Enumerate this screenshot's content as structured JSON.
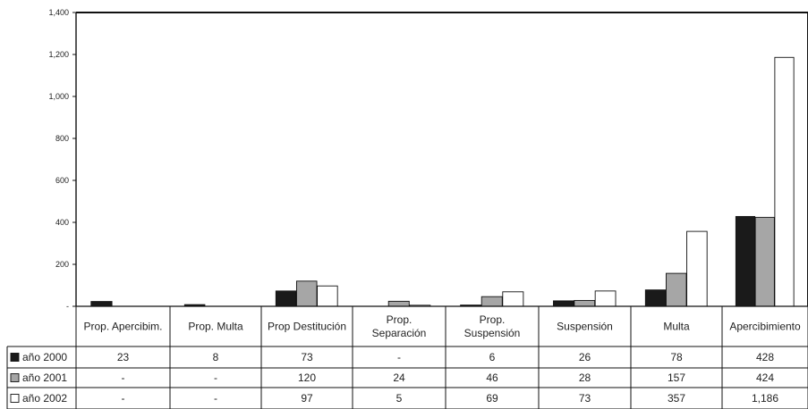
{
  "chart_data": {
    "type": "bar",
    "categories": [
      "Prop. Apercibim.",
      "Prop. Multa",
      "Prop Destitución",
      "Prop. Separación",
      "Prop. Suspensión",
      "Suspensión",
      "Multa",
      "Apercibimiento"
    ],
    "category_lines": [
      [
        "Prop. Apercibim."
      ],
      [
        "Prop. Multa"
      ],
      [
        "Prop Destitución"
      ],
      [
        "Prop.",
        "Separación"
      ],
      [
        "Prop.",
        "Suspensión"
      ],
      [
        "Suspensión"
      ],
      [
        "Multa"
      ],
      [
        "Apercibimiento"
      ]
    ],
    "series": [
      {
        "name": "año 2000",
        "color": "#1a1a1a",
        "values": [
          23,
          8,
          73,
          null,
          6,
          26,
          78,
          428
        ]
      },
      {
        "name": "año 2001",
        "color": "#a6a6a6",
        "values": [
          null,
          null,
          120,
          24,
          46,
          28,
          157,
          424
        ]
      },
      {
        "name": "año 2002",
        "color": "#ffffff",
        "values": [
          null,
          null,
          97,
          5,
          69,
          73,
          357,
          1186
        ]
      }
    ],
    "table_cells": [
      [
        "23",
        "8",
        "73",
        "-",
        "6",
        "26",
        "78",
        "428"
      ],
      [
        "-",
        "-",
        "120",
        "24",
        "46",
        "28",
        "157",
        "424"
      ],
      [
        "-",
        "-",
        "97",
        "5",
        "69",
        "73",
        "357",
        "1,186"
      ]
    ],
    "y_ticks": [
      {
        "value": 0,
        "label": "-"
      },
      {
        "value": 200,
        "label": "200"
      },
      {
        "value": 400,
        "label": "400"
      },
      {
        "value": 600,
        "label": "600"
      },
      {
        "value": 800,
        "label": "800"
      },
      {
        "value": 1000,
        "label": "1,000"
      },
      {
        "value": 1200,
        "label": "1,200"
      },
      {
        "value": 1400,
        "label": "1,400"
      }
    ],
    "ylim": [
      0,
      1400
    ],
    "grid": false,
    "legend": "data-table"
  }
}
